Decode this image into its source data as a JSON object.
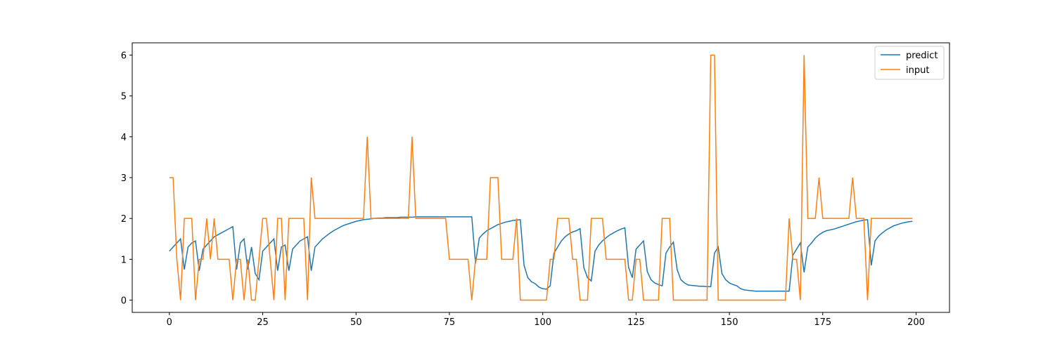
{
  "chart_data": {
    "type": "line",
    "x": [
      0,
      1,
      2,
      3,
      4,
      5,
      6,
      7,
      8,
      9,
      10,
      11,
      12,
      13,
      14,
      15,
      16,
      17,
      18,
      19,
      20,
      21,
      22,
      23,
      24,
      25,
      26,
      27,
      28,
      29,
      30,
      31,
      32,
      33,
      34,
      35,
      36,
      37,
      38,
      39,
      40,
      41,
      42,
      43,
      44,
      45,
      46,
      47,
      48,
      49,
      50,
      51,
      52,
      53,
      54,
      55,
      56,
      57,
      58,
      59,
      60,
      61,
      62,
      63,
      64,
      65,
      66,
      67,
      68,
      69,
      70,
      71,
      72,
      73,
      74,
      75,
      76,
      77,
      78,
      79,
      80,
      81,
      82,
      83,
      84,
      85,
      86,
      87,
      88,
      89,
      90,
      91,
      92,
      93,
      94,
      95,
      96,
      97,
      98,
      99,
      100,
      101,
      102,
      103,
      104,
      105,
      106,
      107,
      108,
      109,
      110,
      111,
      112,
      113,
      114,
      115,
      116,
      117,
      118,
      119,
      120,
      121,
      122,
      123,
      124,
      125,
      126,
      127,
      128,
      129,
      130,
      131,
      132,
      133,
      134,
      135,
      136,
      137,
      138,
      139,
      140,
      141,
      142,
      143,
      144,
      145,
      146,
      147,
      148,
      149,
      150,
      151,
      152,
      153,
      154,
      155,
      156,
      157,
      158,
      159,
      160,
      161,
      162,
      163,
      164,
      165,
      166,
      167,
      168,
      169,
      170,
      171,
      172,
      173,
      174,
      175,
      176,
      177,
      178,
      179,
      180,
      181,
      182,
      183,
      184,
      185,
      186,
      187,
      188,
      189,
      190,
      191,
      192,
      193,
      194,
      195,
      196,
      197,
      198,
      199
    ],
    "series": [
      {
        "name": "predict",
        "color": "#1f77b4",
        "values": [
          1.2,
          1.3,
          1.4,
          1.5,
          0.75,
          1.3,
          1.4,
          1.45,
          0.72,
          1.25,
          1.35,
          1.45,
          1.55,
          1.6,
          1.65,
          1.7,
          1.75,
          1.8,
          0.75,
          1.4,
          1.5,
          0.75,
          1.3,
          0.65,
          0.5,
          1.2,
          1.3,
          1.4,
          1.5,
          0.72,
          1.3,
          1.35,
          0.72,
          1.25,
          1.35,
          1.45,
          1.5,
          1.55,
          0.72,
          1.3,
          1.4,
          1.5,
          1.57,
          1.64,
          1.7,
          1.75,
          1.8,
          1.84,
          1.87,
          1.9,
          1.93,
          1.95,
          1.97,
          1.98,
          1.99,
          2.0,
          2.01,
          2.01,
          2.02,
          2.02,
          2.02,
          2.02,
          2.03,
          2.03,
          2.03,
          2.03,
          2.04,
          2.04,
          2.04,
          2.04,
          2.04,
          2.04,
          2.04,
          2.04,
          2.04,
          2.04,
          2.04,
          2.04,
          2.04,
          2.04,
          2.04,
          2.04,
          0.9,
          1.52,
          1.62,
          1.7,
          1.75,
          1.8,
          1.85,
          1.88,
          1.91,
          1.93,
          1.95,
          1.96,
          1.97,
          0.85,
          0.55,
          0.45,
          0.4,
          0.32,
          0.28,
          0.27,
          0.35,
          1.15,
          1.3,
          1.45,
          1.55,
          1.62,
          1.67,
          1.7,
          1.75,
          0.8,
          0.55,
          0.47,
          1.2,
          1.35,
          1.45,
          1.53,
          1.6,
          1.65,
          1.7,
          1.74,
          1.77,
          0.8,
          0.55,
          1.25,
          1.35,
          1.45,
          0.7,
          0.5,
          0.42,
          0.38,
          0.35,
          1.15,
          1.3,
          1.42,
          0.75,
          0.5,
          0.42,
          0.37,
          0.36,
          0.35,
          0.34,
          0.34,
          0.33,
          0.33,
          1.15,
          1.3,
          0.65,
          0.5,
          0.42,
          0.38,
          0.35,
          0.28,
          0.25,
          0.24,
          0.23,
          0.22,
          0.22,
          0.22,
          0.22,
          0.22,
          0.22,
          0.22,
          0.22,
          0.22,
          0.22,
          1.1,
          1.25,
          1.4,
          0.68,
          1.3,
          1.4,
          1.52,
          1.6,
          1.66,
          1.7,
          1.72,
          1.74,
          1.77,
          1.8,
          1.83,
          1.86,
          1.89,
          1.92,
          1.94,
          1.96,
          1.97,
          0.85,
          1.45,
          1.57,
          1.65,
          1.72,
          1.77,
          1.82,
          1.85,
          1.88,
          1.9,
          1.92,
          1.93
        ]
      },
      {
        "name": "input",
        "color": "#ff7f0e",
        "values": [
          3,
          3,
          1,
          0,
          2,
          2,
          2,
          0,
          1,
          1,
          2,
          1,
          2,
          1,
          1,
          1,
          1,
          0,
          1,
          1,
          0,
          1,
          0,
          0,
          1,
          2,
          2,
          1,
          0,
          2,
          2,
          0,
          2,
          2,
          2,
          2,
          2,
          0,
          3,
          2,
          2,
          2,
          2,
          2,
          2,
          2,
          2,
          2,
          2,
          2,
          2,
          2,
          2,
          4,
          2,
          2,
          2,
          2,
          2,
          2,
          2,
          2,
          2,
          2,
          2,
          4,
          2,
          2,
          2,
          2,
          2,
          2,
          2,
          2,
          2,
          1,
          1,
          1,
          1,
          1,
          1,
          0,
          1,
          1,
          1,
          1,
          3,
          3,
          3,
          1,
          1,
          1,
          1,
          2,
          0,
          0,
          0,
          0,
          0,
          0,
          0,
          0,
          1,
          1,
          2,
          2,
          2,
          2,
          1,
          1,
          0,
          0,
          0,
          2,
          2,
          2,
          2,
          1,
          1,
          1,
          1,
          1,
          1,
          0,
          0,
          1,
          1,
          0,
          0,
          0,
          0,
          0,
          2,
          2,
          2,
          0,
          0,
          0,
          0,
          0,
          0,
          0,
          0,
          0,
          0,
          6,
          6,
          0,
          0,
          0,
          0,
          0,
          0,
          0,
          0,
          0,
          0,
          0,
          0,
          0,
          0,
          0,
          0,
          0,
          0,
          0,
          2,
          1,
          1,
          0,
          6,
          2,
          2,
          2,
          3,
          2,
          2,
          2,
          2,
          2,
          2,
          2,
          2,
          3,
          2,
          2,
          2,
          0,
          2,
          2,
          2,
          2,
          2,
          2,
          2,
          2,
          2,
          2,
          2,
          2
        ]
      }
    ],
    "xlim": [
      -9.95,
      208.95
    ],
    "xticks": [
      0,
      25,
      50,
      75,
      100,
      125,
      150,
      175,
      200
    ],
    "ylim": [
      -0.3,
      6.3
    ],
    "yticks": [
      0,
      1,
      2,
      3,
      4,
      5,
      6
    ],
    "grid": false,
    "legend": "upper right"
  }
}
